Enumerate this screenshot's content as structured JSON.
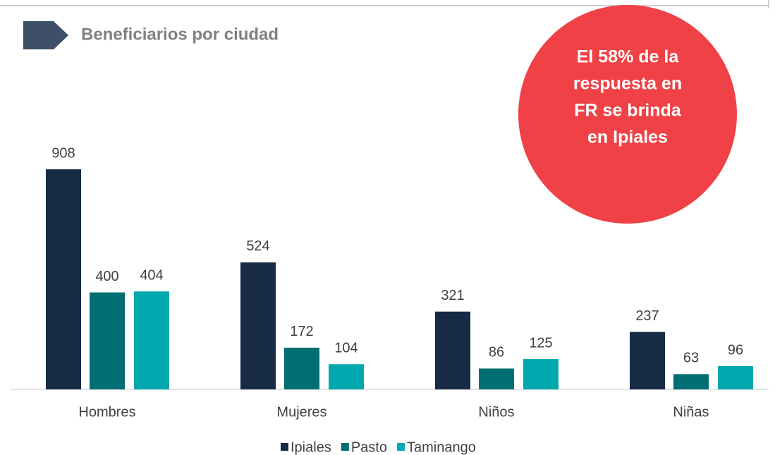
{
  "chart_data": {
    "type": "bar",
    "title": "Beneficiarios por ciudad",
    "annotation": [
      "El 58% de la",
      "respuesta en",
      "FR se brinda",
      "en Ipiales"
    ],
    "categories": [
      "Hombres",
      "Mujeres",
      "Niños",
      "Niñas"
    ],
    "series": [
      {
        "name": "Ipiales",
        "color": "#172b45",
        "values": [
          908,
          524,
          321,
          237
        ]
      },
      {
        "name": "Pasto",
        "color": "#006e73",
        "values": [
          400,
          172,
          86,
          63
        ]
      },
      {
        "name": "Taminango",
        "color": "#00a9ad",
        "values": [
          404,
          104,
          125,
          96
        ]
      }
    ],
    "legend": "bottom"
  }
}
